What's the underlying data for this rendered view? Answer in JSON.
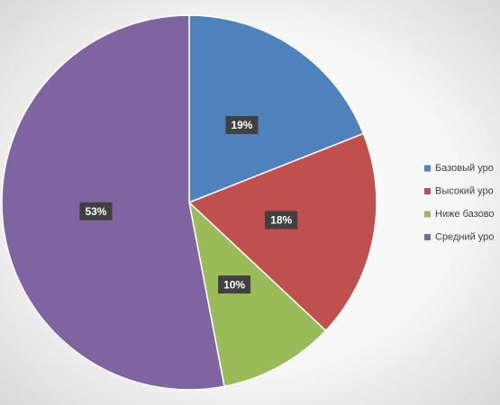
{
  "chart_data": {
    "type": "pie",
    "categories": [
      "Базовый уро",
      "Высокий уро",
      "Ниже базово",
      "Средний уро"
    ],
    "values": [
      19,
      18,
      10,
      53
    ],
    "value_labels": [
      "19%",
      "18%",
      "10%",
      "53%"
    ],
    "colors": [
      "#4f81bd",
      "#c0504d",
      "#9bbb59",
      "#8064a2"
    ],
    "legend": "right"
  }
}
